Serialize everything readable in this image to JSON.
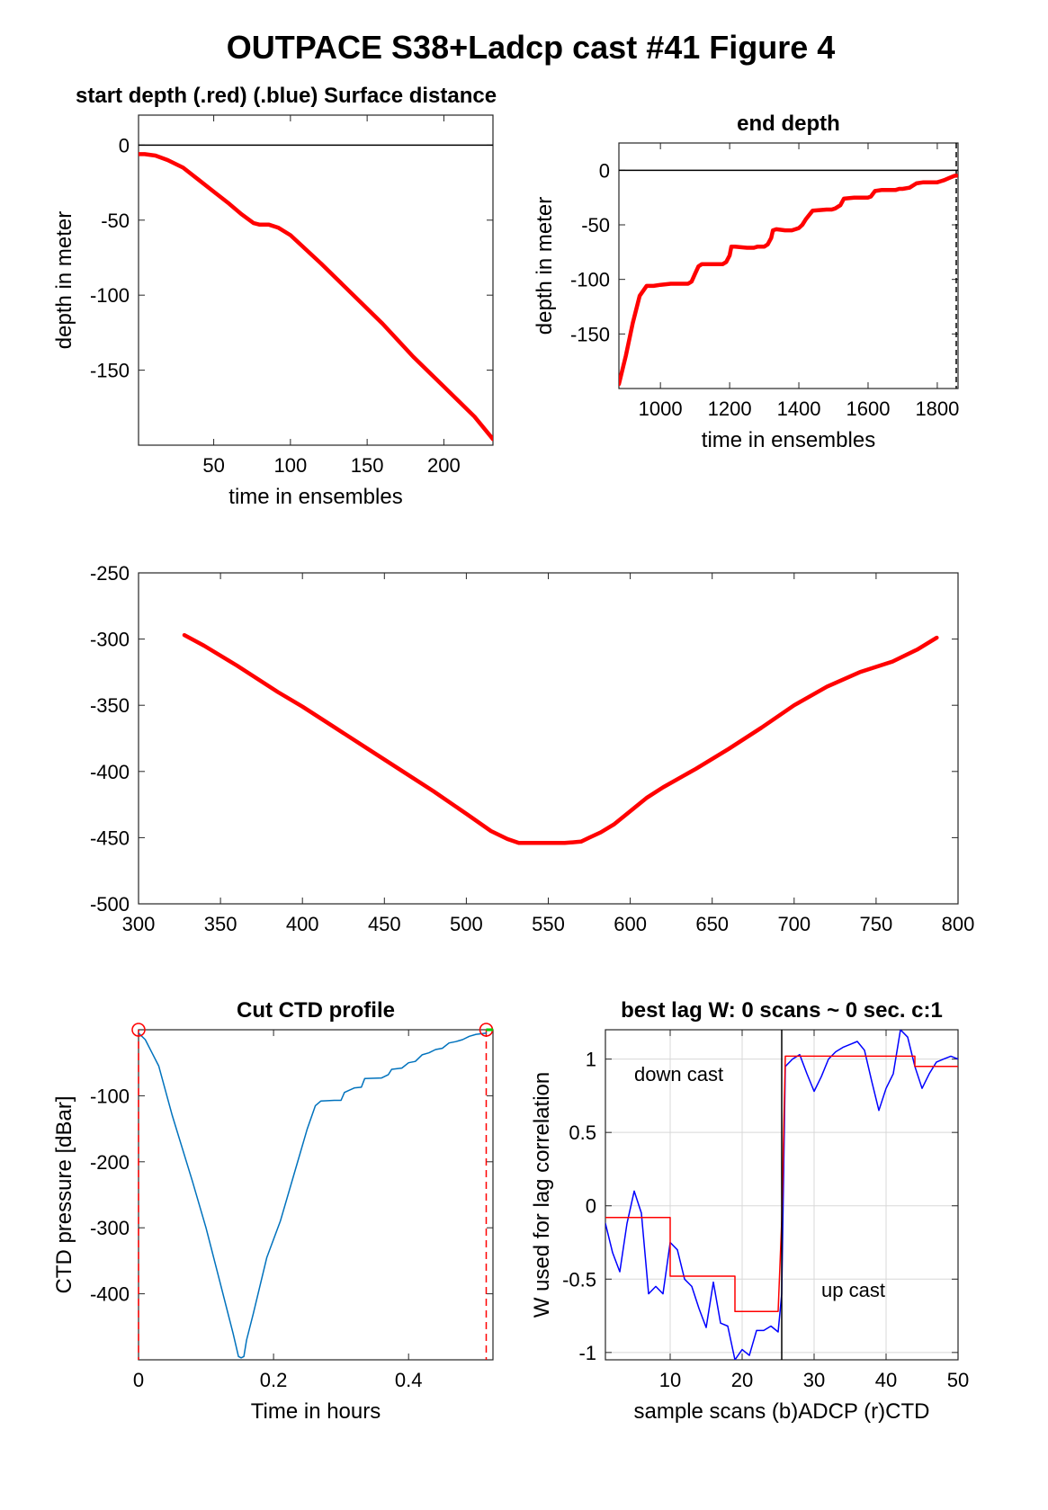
{
  "figure_title": "OUTPACE S38+Ladcp cast #41   Figure 4",
  "chart_data": [
    {
      "id": "start_depth",
      "type": "line",
      "title": "start depth (.red) (.blue) Surface distance",
      "xlabel": "time in ensembles",
      "ylabel": "depth in meter",
      "xlim": [
        1,
        232
      ],
      "ylim": [
        -200,
        20
      ],
      "xticks": [
        50,
        100,
        150,
        200
      ],
      "yticks": [
        0,
        -50,
        -100,
        -150
      ],
      "xtick_labels": [
        "50",
        "100",
        "150",
        "200"
      ],
      "ytick_labels": [
        "0",
        "-50",
        "-100",
        "-150"
      ],
      "reference_line": 0,
      "series": [
        {
          "color": "#ff0000",
          "x": [
            1,
            5,
            12,
            20,
            30,
            40,
            50,
            60,
            68,
            72,
            76,
            80,
            86,
            92,
            100,
            120,
            140,
            160,
            180,
            200,
            220,
            232
          ],
          "y": [
            -6,
            -6,
            -7,
            -10,
            -15,
            -23,
            -31,
            -39,
            -46,
            -49,
            -52,
            -53,
            -53,
            -55,
            -60,
            -79,
            -99,
            -119,
            -141,
            -161,
            -181,
            -196
          ]
        }
      ]
    },
    {
      "id": "end_depth",
      "type": "line",
      "title": "end depth",
      "xlabel": "time in ensembles",
      "ylabel": "depth in meter",
      "xlim": [
        880,
        1860
      ],
      "ylim": [
        -200,
        25
      ],
      "xticks": [
        1000,
        1200,
        1400,
        1600,
        1800
      ],
      "yticks": [
        0,
        -50,
        -100,
        -150
      ],
      "xtick_labels": [
        "1000",
        "1200",
        "1400",
        "1600",
        "1800"
      ],
      "ytick_labels": [
        "0",
        "-50",
        "-100",
        "-150"
      ],
      "reference_line": 0,
      "series": [
        {
          "color": "#ff0000",
          "x": [
            880,
            900,
            920,
            940,
            960,
            980,
            1000,
            1030,
            1060,
            1080,
            1090,
            1100,
            1110,
            1120,
            1130,
            1160,
            1180,
            1190,
            1200,
            1205,
            1215,
            1250,
            1270,
            1280,
            1300,
            1310,
            1320,
            1325,
            1335,
            1360,
            1380,
            1390,
            1400,
            1410,
            1420,
            1440,
            1480,
            1495,
            1505,
            1520,
            1530,
            1560,
            1590,
            1600,
            1608,
            1620,
            1640,
            1680,
            1690,
            1700,
            1720,
            1740,
            1760,
            1790,
            1800,
            1810,
            1820,
            1835,
            1850,
            1855
          ],
          "y": [
            -196,
            -170,
            -140,
            -115,
            -106,
            -106,
            -105,
            -104,
            -104,
            -104,
            -102,
            -95,
            -88,
            -86,
            -86,
            -86,
            -86,
            -84,
            -78,
            -70,
            -70,
            -71,
            -71,
            -70,
            -70,
            -68,
            -62,
            -55,
            -54,
            -55,
            -55,
            -54,
            -53,
            -50,
            -45,
            -37,
            -36,
            -36,
            -35,
            -32,
            -26,
            -25,
            -25,
            -25,
            -24,
            -19,
            -18,
            -18,
            -17,
            -17,
            -16,
            -12,
            -11,
            -11,
            -11,
            -10,
            -9,
            -7,
            -5,
            -5
          ]
        }
      ]
    },
    {
      "id": "full_depth",
      "type": "line",
      "title": "",
      "xlabel": "",
      "ylabel": "",
      "xlim": [
        300,
        800
      ],
      "ylim": [
        -500,
        -250
      ],
      "xticks": [
        300,
        350,
        400,
        450,
        500,
        550,
        600,
        650,
        700,
        750,
        800
      ],
      "yticks": [
        -250,
        -300,
        -350,
        -400,
        -450,
        -500
      ],
      "xtick_labels": [
        "300",
        "350",
        "400",
        "450",
        "500",
        "550",
        "600",
        "650",
        "700",
        "750",
        "800"
      ],
      "ytick_labels": [
        "-250",
        "-300",
        "-350",
        "-400",
        "-450",
        "-500"
      ],
      "series": [
        {
          "color": "#ff0000",
          "x": [
            328,
            340,
            360,
            385,
            400,
            420,
            440,
            460,
            480,
            500,
            515,
            525,
            532,
            545,
            560,
            570,
            575,
            582,
            590,
            600,
            610,
            620,
            640,
            660,
            680,
            700,
            720,
            740,
            760,
            775,
            787
          ],
          "y": [
            -297,
            -305,
            -320,
            -340,
            -351,
            -367,
            -383,
            -399,
            -415,
            -432,
            -445,
            -451,
            -454,
            -454,
            -454,
            -453,
            -450,
            -446,
            -440,
            -430,
            -420,
            -412,
            -398,
            -383,
            -367,
            -350,
            -336,
            -325,
            -317,
            -308,
            -299
          ]
        }
      ]
    },
    {
      "id": "cut_ctd",
      "type": "line",
      "title": "Cut CTD profile",
      "xlabel": "Time in hours",
      "ylabel": "CTD pressure [dBar]",
      "xlim": [
        0,
        0.525
      ],
      "ylim": [
        -500,
        0
      ],
      "xticks": [
        0,
        0.2,
        0.4
      ],
      "yticks": [
        -100,
        -200,
        -300,
        -400
      ],
      "xtick_labels": [
        "0",
        "0.2",
        "0.4"
      ],
      "ytick_labels": [
        "-100",
        "-200",
        "-300",
        "-400"
      ],
      "vlines": [
        0,
        0.515
      ],
      "start_marker": [
        0,
        0
      ],
      "end_marker": [
        0.515,
        0
      ],
      "series": [
        {
          "color": "#0072bd",
          "x": [
            0,
            0.01,
            0.02,
            0.03,
            0.05,
            0.08,
            0.1,
            0.12,
            0.14,
            0.148,
            0.152,
            0.156,
            0.16,
            0.17,
            0.19,
            0.21,
            0.23,
            0.25,
            0.262,
            0.27,
            0.29,
            0.3,
            0.305,
            0.32,
            0.33,
            0.335,
            0.36,
            0.37,
            0.375,
            0.39,
            0.4,
            0.41,
            0.42,
            0.43,
            0.44,
            0.45,
            0.46,
            0.47,
            0.48,
            0.49,
            0.5,
            0.515
          ],
          "y": [
            -5,
            -15,
            -35,
            -55,
            -130,
            -230,
            -300,
            -380,
            -460,
            -495,
            -497,
            -495,
            -470,
            -430,
            -345,
            -290,
            -220,
            -150,
            -115,
            -108,
            -107,
            -107,
            -95,
            -88,
            -87,
            -74,
            -73,
            -68,
            -60,
            -58,
            -50,
            -48,
            -38,
            -35,
            -30,
            -28,
            -20,
            -18,
            -15,
            -10,
            -7,
            -5
          ]
        }
      ]
    },
    {
      "id": "best_lag",
      "type": "line",
      "title": "best lag W: 0 scans ~ 0 sec.  c:1",
      "xlabel": "sample scans (b)ADCP (r)CTD",
      "ylabel": "W used for lag correlation",
      "xlim": [
        1,
        50
      ],
      "ylim": [
        -1.05,
        1.2
      ],
      "xticks": [
        10,
        20,
        30,
        40,
        50
      ],
      "yticks": [
        1,
        0.5,
        0,
        -0.5,
        -1
      ],
      "xtick_labels": [
        "10",
        "20",
        "30",
        "40",
        "50"
      ],
      "ytick_labels": [
        "1",
        "0.5",
        "0",
        "-0.5",
        "-1"
      ],
      "grid": true,
      "vline": 25.5,
      "annotations": [
        {
          "text": "down cast",
          "x": 5,
          "y": 0.85
        },
        {
          "text": "up cast",
          "x": 31,
          "y": -0.62
        }
      ],
      "series": [
        {
          "color": "#0000ff",
          "x": [
            1,
            2,
            3,
            4,
            5,
            6,
            7,
            8,
            9,
            10,
            11,
            12,
            13,
            14,
            15,
            16,
            17,
            18,
            19,
            20,
            21,
            22,
            23,
            24,
            25,
            25.5,
            26,
            27,
            28,
            29,
            30,
            31,
            32,
            33,
            34,
            35,
            36,
            37,
            38,
            39,
            40,
            41,
            42,
            43,
            44,
            45,
            46,
            47,
            48,
            49,
            50
          ],
          "y": [
            -0.12,
            -0.32,
            -0.45,
            -0.12,
            0.1,
            -0.05,
            -0.6,
            -0.55,
            -0.6,
            -0.25,
            -0.3,
            -0.5,
            -0.55,
            -0.7,
            -0.83,
            -0.52,
            -0.8,
            -0.82,
            -1.05,
            -0.98,
            -1.02,
            -0.85,
            -0.85,
            -0.82,
            -0.86,
            -0.6,
            0.95,
            1.0,
            1.03,
            0.9,
            0.78,
            0.88,
            1.0,
            1.05,
            1.08,
            1.1,
            1.12,
            1.06,
            0.85,
            0.65,
            0.8,
            0.9,
            1.2,
            1.15,
            0.95,
            0.8,
            0.9,
            0.98,
            1.0,
            1.02,
            1.0
          ]
        },
        {
          "color": "#ff0000",
          "x": [
            1,
            10,
            10,
            19,
            19,
            25,
            25.5,
            26,
            44,
            44,
            50
          ],
          "y": [
            -0.08,
            -0.08,
            -0.48,
            -0.48,
            -0.72,
            -0.72,
            -0.1,
            1.02,
            1.02,
            0.95,
            0.95
          ]
        }
      ]
    }
  ]
}
